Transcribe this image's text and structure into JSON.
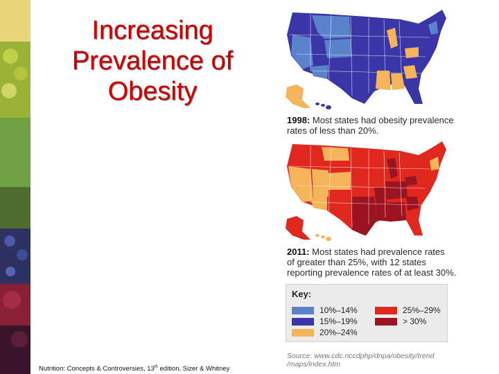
{
  "slide": {
    "title_lines": [
      "Increasing",
      "Prevalence of",
      "Obesity"
    ]
  },
  "map_1998": {
    "year": "1998:",
    "caption_line1": " Most states had obesity prevalence",
    "caption_line2": "rates of less than 20%."
  },
  "map_2011": {
    "year": "2011:",
    "caption_line1": " Most states had prevalence rates",
    "caption_line2": "of greater than 25%, with 12 states",
    "caption_line3": "reporting prevalence rates of at least 30%."
  },
  "key": {
    "title": "Key:",
    "items": [
      {
        "label": "10%–14%",
        "color": "#5a83cc"
      },
      {
        "label": "15%–19%",
        "color": "#3b36a8"
      },
      {
        "label": "20%–24%",
        "color": "#f5b45a"
      },
      {
        "label": "25%–29%",
        "color": "#e0281e"
      },
      {
        "label": "> 30%",
        "color": "#9b1421"
      }
    ]
  },
  "source": {
    "line1": "Source: www.cdc.nccdphp/dnpa/obesity/trend",
    "line2": "/maps/index.htm"
  },
  "footer": {
    "text_before": "Nutrition: Concepts & Controversies, 13",
    "superscript": "th",
    "text_after": " edition, Sizer & Whitney"
  }
}
